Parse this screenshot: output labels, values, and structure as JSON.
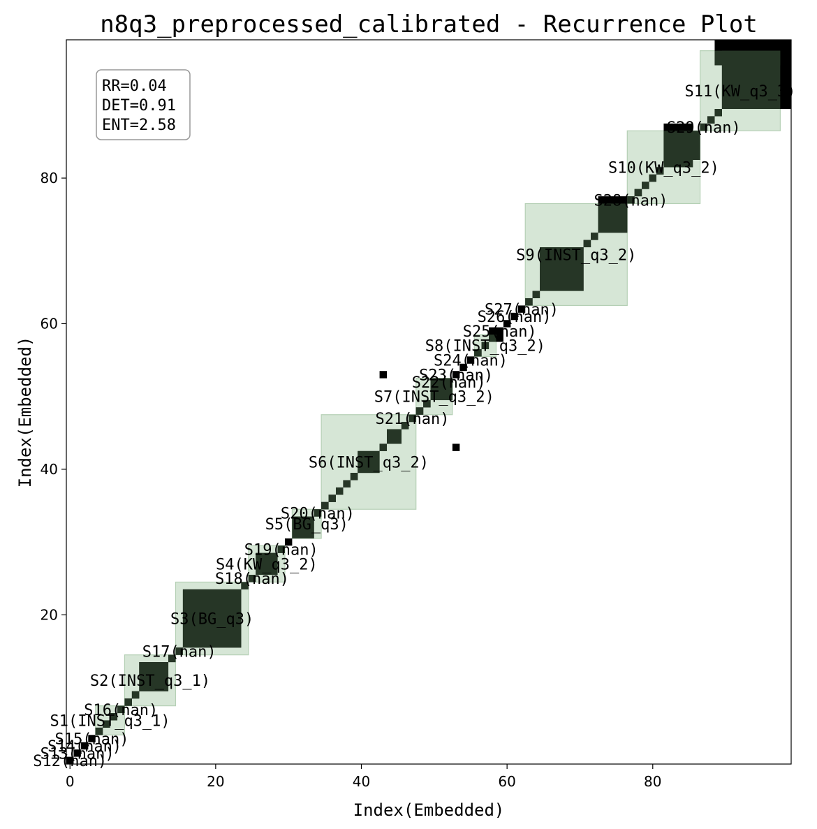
{
  "chart_data": {
    "type": "heatmap",
    "title": "n8q3_preprocessed_calibrated - Recurrence Plot",
    "xlabel": "Index(Embedded)",
    "ylabel": "Index(Embedded)",
    "xlim": [
      -0.5,
      99
    ],
    "ylim": [
      -0.5,
      99
    ],
    "xticks": [
      0,
      20,
      40,
      60,
      80
    ],
    "yticks": [
      20,
      40,
      60,
      80
    ],
    "stats": [
      "RR=0.04",
      "DET=0.91",
      "ENT=2.58"
    ],
    "colors": {
      "recurrence": "#000000",
      "segment_fill": "#d6e6d6",
      "segment_edge": "#b5d0b5",
      "overlap": "#263626"
    },
    "segments": [
      {
        "label": "S1(INST_q3_1)",
        "start": 4,
        "end": 7
      },
      {
        "label": "S2(INST_q3_1)",
        "start": 8,
        "end": 14
      },
      {
        "label": "S3(BG_q3)",
        "start": 15,
        "end": 24
      },
      {
        "label": "S4(KW_q3_2)",
        "start": 25,
        "end": 29
      },
      {
        "label": "S5(BG_q3)",
        "start": 31,
        "end": 34
      },
      {
        "label": "S6(INST_q3_2)",
        "start": 35,
        "end": 47
      },
      {
        "label": "S7(INST_q3_2)",
        "start": 48,
        "end": 52
      },
      {
        "label": "S8(INST_q3_2)",
        "start": 56,
        "end": 58
      },
      {
        "label": "S9(INST_q3_2)",
        "start": 63,
        "end": 76
      },
      {
        "label": "S10(KW_q3_2)",
        "start": 77,
        "end": 86
      },
      {
        "label": "S11(KW_q3_3)",
        "start": 87,
        "end": 97
      },
      {
        "label": "S12(nan)",
        "start": 0,
        "end": 0
      },
      {
        "label": "S13(nan)",
        "start": 1,
        "end": 1
      },
      {
        "label": "S14(nan)",
        "start": 2,
        "end": 2
      },
      {
        "label": "S15(nan)",
        "start": 3,
        "end": 3
      },
      {
        "label": "S16(nan)",
        "start": 7,
        "end": 7
      },
      {
        "label": "S17(nan)",
        "start": 15,
        "end": 15
      },
      {
        "label": "S18(nan)",
        "start": 25,
        "end": 25
      },
      {
        "label": "S19(nan)",
        "start": 29,
        "end": 29
      },
      {
        "label": "S20(nan)",
        "start": 34,
        "end": 34
      },
      {
        "label": "S21(nan)",
        "start": 47,
        "end": 47
      },
      {
        "label": "S22(nan)",
        "start": 52,
        "end": 52
      },
      {
        "label": "S23(nan)",
        "start": 53,
        "end": 53
      },
      {
        "label": "S24(nan)",
        "start": 55,
        "end": 55
      },
      {
        "label": "S25(nan)",
        "start": 59,
        "end": 59
      },
      {
        "label": "S26(nan)",
        "start": 61,
        "end": 61
      },
      {
        "label": "S27(nan)",
        "start": 62,
        "end": 62
      },
      {
        "label": "S28(nan)",
        "start": 77,
        "end": 77
      },
      {
        "label": "S29(nan)",
        "start": 87,
        "end": 87
      }
    ],
    "recurrence_blocks": [
      {
        "x": [
          0,
          0
        ],
        "y": [
          0,
          0
        ]
      },
      {
        "x": [
          1,
          1
        ],
        "y": [
          1,
          1
        ]
      },
      {
        "x": [
          2,
          2
        ],
        "y": [
          2,
          2
        ]
      },
      {
        "x": [
          3,
          3
        ],
        "y": [
          3,
          3
        ]
      },
      {
        "x": [
          4,
          4
        ],
        "y": [
          4,
          4
        ]
      },
      {
        "x": [
          5,
          5
        ],
        "y": [
          5,
          5
        ]
      },
      {
        "x": [
          6,
          6
        ],
        "y": [
          6,
          6
        ]
      },
      {
        "x": [
          7,
          7
        ],
        "y": [
          7,
          7
        ]
      },
      {
        "x": [
          8,
          8
        ],
        "y": [
          8,
          8
        ]
      },
      {
        "x": [
          9,
          9
        ],
        "y": [
          9,
          9
        ]
      },
      {
        "x": [
          10,
          13
        ],
        "y": [
          10,
          13
        ]
      },
      {
        "x": [
          14,
          14
        ],
        "y": [
          14,
          14
        ]
      },
      {
        "x": [
          15,
          15
        ],
        "y": [
          15,
          15
        ]
      },
      {
        "x": [
          16,
          23
        ],
        "y": [
          16,
          23
        ]
      },
      {
        "x": [
          24,
          24
        ],
        "y": [
          24,
          24
        ]
      },
      {
        "x": [
          25,
          25
        ],
        "y": [
          25,
          25
        ]
      },
      {
        "x": [
          26,
          28
        ],
        "y": [
          26,
          28
        ]
      },
      {
        "x": [
          29,
          29
        ],
        "y": [
          29,
          29
        ]
      },
      {
        "x": [
          30,
          30
        ],
        "y": [
          30,
          30
        ]
      },
      {
        "x": [
          31,
          33
        ],
        "y": [
          31,
          33
        ]
      },
      {
        "x": [
          34,
          34
        ],
        "y": [
          34,
          34
        ]
      },
      {
        "x": [
          35,
          35
        ],
        "y": [
          35,
          35
        ]
      },
      {
        "x": [
          36,
          36
        ],
        "y": [
          36,
          36
        ]
      },
      {
        "x": [
          37,
          37
        ],
        "y": [
          37,
          37
        ]
      },
      {
        "x": [
          38,
          38
        ],
        "y": [
          38,
          38
        ]
      },
      {
        "x": [
          39,
          39
        ],
        "y": [
          39,
          39
        ]
      },
      {
        "x": [
          40,
          42
        ],
        "y": [
          40,
          42
        ]
      },
      {
        "x": [
          43,
          43
        ],
        "y": [
          43,
          43
        ]
      },
      {
        "x": [
          44,
          45
        ],
        "y": [
          44,
          45
        ]
      },
      {
        "x": [
          46,
          46
        ],
        "y": [
          46,
          46
        ]
      },
      {
        "x": [
          47,
          47
        ],
        "y": [
          47,
          47
        ]
      },
      {
        "x": [
          48,
          48
        ],
        "y": [
          48,
          48
        ]
      },
      {
        "x": [
          49,
          49
        ],
        "y": [
          49,
          49
        ]
      },
      {
        "x": [
          50,
          52
        ],
        "y": [
          50,
          52
        ]
      },
      {
        "x": [
          53,
          53
        ],
        "y": [
          53,
          53
        ]
      },
      {
        "x": [
          54,
          54
        ],
        "y": [
          54,
          54
        ]
      },
      {
        "x": [
          55,
          55
        ],
        "y": [
          55,
          55
        ]
      },
      {
        "x": [
          56,
          56
        ],
        "y": [
          56,
          56
        ]
      },
      {
        "x": [
          57,
          57
        ],
        "y": [
          57,
          57
        ]
      },
      {
        "x": [
          58,
          59
        ],
        "y": [
          58,
          59
        ]
      },
      {
        "x": [
          60,
          60
        ],
        "y": [
          60,
          60
        ]
      },
      {
        "x": [
          61,
          61
        ],
        "y": [
          61,
          61
        ]
      },
      {
        "x": [
          62,
          62
        ],
        "y": [
          62,
          62
        ]
      },
      {
        "x": [
          63,
          63
        ],
        "y": [
          63,
          63
        ]
      },
      {
        "x": [
          64,
          64
        ],
        "y": [
          64,
          64
        ]
      },
      {
        "x": [
          65,
          70
        ],
        "y": [
          65,
          70
        ]
      },
      {
        "x": [
          71,
          71
        ],
        "y": [
          71,
          71
        ]
      },
      {
        "x": [
          72,
          72
        ],
        "y": [
          72,
          72
        ]
      },
      {
        "x": [
          73,
          76
        ],
        "y": [
          73,
          77
        ]
      },
      {
        "x": [
          77,
          77
        ],
        "y": [
          77,
          77
        ]
      },
      {
        "x": [
          78,
          78
        ],
        "y": [
          78,
          78
        ]
      },
      {
        "x": [
          79,
          79
        ],
        "y": [
          79,
          79
        ]
      },
      {
        "x": [
          80,
          80
        ],
        "y": [
          80,
          80
        ]
      },
      {
        "x": [
          81,
          81
        ],
        "y": [
          81,
          81
        ]
      },
      {
        "x": [
          82,
          85
        ],
        "y": [
          82,
          87
        ]
      },
      {
        "x": [
          86,
          86
        ],
        "y": [
          83,
          86
        ]
      },
      {
        "x": [
          87,
          87
        ],
        "y": [
          87,
          87
        ]
      },
      {
        "x": [
          88,
          88
        ],
        "y": [
          88,
          88
        ]
      },
      {
        "x": [
          89,
          89
        ],
        "y": [
          89,
          89
        ]
      },
      {
        "x": [
          90,
          99
        ],
        "y": [
          90,
          99
        ]
      },
      {
        "x": [
          89,
          99
        ],
        "y": [
          96,
          99
        ]
      },
      {
        "x": [
          43,
          43
        ],
        "y": [
          53,
          53
        ]
      },
      {
        "x": [
          53,
          53
        ],
        "y": [
          43,
          43
        ]
      }
    ]
  }
}
